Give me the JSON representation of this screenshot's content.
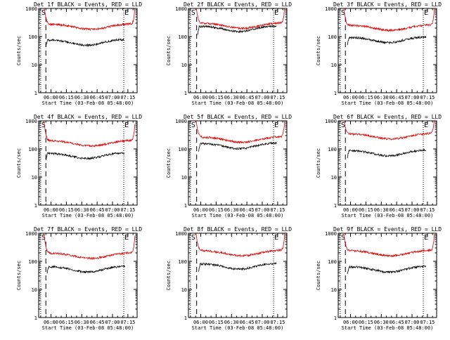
{
  "colors": {
    "events": "#000000",
    "lld": "#e00000",
    "axes": "#000000"
  },
  "chart_data": {
    "type": "line",
    "layout": "3x3 small multiples",
    "xlabel": "Start Time (03-Feb-08 05:48:00)",
    "ylabel": "Counts/sec",
    "yscale": "log",
    "ylim": [
      1,
      1000
    ],
    "y_ticks": [
      "1",
      "10",
      "100",
      "1000"
    ],
    "xlim": [
      "05:48",
      "07:24"
    ],
    "x_ticks": [
      "06:00",
      "06:15",
      "06:30",
      "06:45",
      "07:00",
      "07:15"
    ],
    "grid": false,
    "markers": [
      {
        "label": "S",
        "time": "05:50",
        "style": "dotted"
      },
      {
        "label": "E",
        "time": "07:11",
        "style": "dotted"
      }
    ],
    "panels": [
      {
        "title": "Det 1f BLACK = Events, RED = LLD",
        "dashed_line": "05:55",
        "series": [
          {
            "name": "Events",
            "color": "#000000",
            "start": "05:55",
            "end": "07:12",
            "level": 65
          },
          {
            "name": "LLD",
            "color": "#e00000",
            "start": "05:53",
            "end": "07:22",
            "level": 240
          }
        ]
      },
      {
        "title": "Det 2f BLACK = Events, RED = LLD",
        "dashed_line": "05:56",
        "series": [
          {
            "name": "Events",
            "color": "#000000",
            "start": "05:57",
            "end": "07:14",
            "level": 200
          },
          {
            "name": "LLD",
            "color": "#e00000",
            "start": "05:55",
            "end": "07:22",
            "level": 260
          }
        ]
      },
      {
        "title": "Det 3f BLACK = Events, RED = LLD",
        "dashed_line": "05:55",
        "series": [
          {
            "name": "Events",
            "color": "#000000",
            "start": "05:57",
            "end": "07:14",
            "level": 80
          },
          {
            "name": "LLD",
            "color": "#e00000",
            "start": "05:53",
            "end": "07:22",
            "level": 220
          }
        ]
      },
      {
        "title": "Det 4f BLACK = Events, RED = LLD",
        "dashed_line": "05:55",
        "series": [
          {
            "name": "Events",
            "color": "#000000",
            "start": "05:55",
            "end": "07:12",
            "level": 60
          },
          {
            "name": "LLD",
            "color": "#e00000",
            "start": "05:53",
            "end": "07:22",
            "level": 170
          }
        ]
      },
      {
        "title": "Det 5f BLACK = Events, RED = LLD",
        "dashed_line": "05:56",
        "series": [
          {
            "name": "Events",
            "color": "#000000",
            "start": "05:58",
            "end": "07:14",
            "level": 135
          },
          {
            "name": "LLD",
            "color": "#e00000",
            "start": "05:55",
            "end": "07:22",
            "level": 230
          }
        ]
      },
      {
        "title": "Det 6f BLACK = Events, RED = LLD",
        "dashed_line": "05:55",
        "series": [
          {
            "name": "Events",
            "color": "#000000",
            "start": "05:57",
            "end": "07:14",
            "level": 75
          },
          {
            "name": "LLD",
            "color": "#e00000",
            "start": "05:53",
            "end": "07:22",
            "level": 300
          }
        ]
      },
      {
        "title": "Det 7f BLACK = Events, RED = LLD",
        "dashed_line": "05:55",
        "series": [
          {
            "name": "Events",
            "color": "#000000",
            "start": "05:56",
            "end": "07:12",
            "level": 55
          },
          {
            "name": "LLD",
            "color": "#e00000",
            "start": "05:53",
            "end": "07:22",
            "level": 170
          }
        ]
      },
      {
        "title": "Det 8f BLACK = Events, RED = LLD",
        "dashed_line": "05:56",
        "series": [
          {
            "name": "Events",
            "color": "#000000",
            "start": "05:58",
            "end": "07:14",
            "level": 70
          },
          {
            "name": "LLD",
            "color": "#e00000",
            "start": "05:55",
            "end": "07:22",
            "level": 210
          }
        ]
      },
      {
        "title": "Det 9f BLACK = Events, RED = LLD",
        "dashed_line": "05:55",
        "series": [
          {
            "name": "Events",
            "color": "#000000",
            "start": "05:57",
            "end": "07:14",
            "level": 55
          },
          {
            "name": "LLD",
            "color": "#e00000",
            "start": "05:53",
            "end": "07:22",
            "level": 210
          }
        ]
      }
    ]
  }
}
